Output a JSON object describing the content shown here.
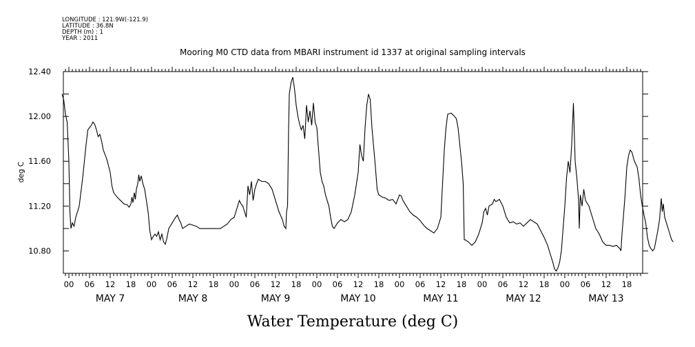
{
  "metadata": {
    "longitude": "LONGITUDE : 121.9W(-121.9)",
    "latitude": "LATITUDE : 36.8N",
    "depth": "DEPTH (m) : 1",
    "year": "YEAR : 2011"
  },
  "chart_data": {
    "type": "line",
    "title": "Mooring M0 CTD data from MBARI instrument id 1337 at original sampling intervals",
    "xlabel": "",
    "ylabel": "deg C",
    "caption": "Water Temperature (deg C)",
    "x_unit": "hours since 2011-05-07 00:00",
    "xlim": [
      -2,
      168
    ],
    "ylim": [
      10.6,
      12.4
    ],
    "y_ticks": [
      10.8,
      11.2,
      11.6,
      12.0,
      12.4
    ],
    "y_tick_labels": [
      "10.80",
      "11.20",
      "11.60",
      "12.00",
      "12.40"
    ],
    "hour_tick_labels": [
      "00",
      "06",
      "12",
      "18"
    ],
    "date_labels": [
      "MAY  7",
      "MAY  8",
      "MAY  9",
      "MAY 10",
      "MAY 11",
      "MAY 12",
      "MAY 13"
    ],
    "grid": false,
    "series": [
      {
        "values": [
          [
            -2,
            12.2
          ],
          [
            -1.5,
            12.15
          ],
          [
            -1,
            12.02
          ],
          [
            -0.5,
            11.95
          ],
          [
            0,
            11.6
          ],
          [
            0.3,
            11.15
          ],
          [
            0.6,
            11.0
          ],
          [
            1,
            11.05
          ],
          [
            1.5,
            11.02
          ],
          [
            2,
            11.1
          ],
          [
            3,
            11.2
          ],
          [
            4,
            11.45
          ],
          [
            5,
            11.75
          ],
          [
            5.5,
            11.88
          ],
          [
            6,
            11.9
          ],
          [
            6.5,
            11.92
          ],
          [
            7,
            11.95
          ],
          [
            7.5,
            11.93
          ],
          [
            8,
            11.88
          ],
          [
            8.5,
            11.82
          ],
          [
            9,
            11.84
          ],
          [
            9.5,
            11.78
          ],
          [
            10,
            11.7
          ],
          [
            11,
            11.62
          ],
          [
            12,
            11.5
          ],
          [
            12.5,
            11.38
          ],
          [
            13,
            11.32
          ],
          [
            14,
            11.28
          ],
          [
            15,
            11.25
          ],
          [
            16,
            11.22
          ],
          [
            17,
            11.21
          ],
          [
            17.5,
            11.19
          ],
          [
            18,
            11.22
          ],
          [
            18.3,
            11.28
          ],
          [
            18.6,
            11.23
          ],
          [
            19,
            11.32
          ],
          [
            19.3,
            11.26
          ],
          [
            19.6,
            11.35
          ],
          [
            20,
            11.4
          ],
          [
            20.3,
            11.48
          ],
          [
            20.6,
            11.42
          ],
          [
            21,
            11.47
          ],
          [
            21.5,
            11.4
          ],
          [
            22,
            11.35
          ],
          [
            23,
            11.15
          ],
          [
            23.5,
            10.98
          ],
          [
            24,
            10.9
          ],
          [
            24.5,
            10.93
          ],
          [
            25,
            10.95
          ],
          [
            25.5,
            10.93
          ],
          [
            26,
            10.97
          ],
          [
            26.5,
            10.9
          ],
          [
            27,
            10.95
          ],
          [
            27.5,
            10.88
          ],
          [
            28,
            10.86
          ],
          [
            28.5,
            10.92
          ],
          [
            29,
            11.0
          ],
          [
            30,
            11.05
          ],
          [
            31,
            11.1
          ],
          [
            31.5,
            11.12
          ],
          [
            32,
            11.08
          ],
          [
            32.5,
            11.05
          ],
          [
            33,
            11.0
          ],
          [
            34,
            11.02
          ],
          [
            35,
            11.04
          ],
          [
            36,
            11.03
          ],
          [
            37,
            11.02
          ],
          [
            38,
            11.0
          ],
          [
            40,
            11.0
          ],
          [
            42,
            11.0
          ],
          [
            44,
            11.0
          ],
          [
            45,
            11.02
          ],
          [
            46,
            11.04
          ],
          [
            47,
            11.08
          ],
          [
            48,
            11.1
          ],
          [
            48.5,
            11.15
          ],
          [
            49,
            11.2
          ],
          [
            49.5,
            11.25
          ],
          [
            50,
            11.22
          ],
          [
            50.5,
            11.2
          ],
          [
            51,
            11.15
          ],
          [
            51.5,
            11.1
          ],
          [
            52,
            11.38
          ],
          [
            52.5,
            11.3
          ],
          [
            53,
            11.42
          ],
          [
            53.5,
            11.25
          ],
          [
            54,
            11.35
          ],
          [
            54.5,
            11.4
          ],
          [
            55,
            11.44
          ],
          [
            56,
            11.42
          ],
          [
            57,
            11.42
          ],
          [
            58,
            11.4
          ],
          [
            59,
            11.35
          ],
          [
            60,
            11.25
          ],
          [
            61,
            11.15
          ],
          [
            62,
            11.08
          ],
          [
            62.5,
            11.02
          ],
          [
            63,
            11.0
          ],
          [
            63.2,
            11.15
          ],
          [
            63.5,
            11.2
          ],
          [
            63.8,
            11.9
          ],
          [
            64,
            12.2
          ],
          [
            64.5,
            12.3
          ],
          [
            65,
            12.35
          ],
          [
            65.5,
            12.25
          ],
          [
            66,
            12.1
          ],
          [
            66.5,
            12.0
          ],
          [
            67,
            11.93
          ],
          [
            67.5,
            11.88
          ],
          [
            68,
            11.92
          ],
          [
            68.5,
            11.8
          ],
          [
            69,
            12.1
          ],
          [
            69.5,
            11.95
          ],
          [
            70,
            12.05
          ],
          [
            70.5,
            11.92
          ],
          [
            71,
            12.12
          ],
          [
            71.5,
            11.95
          ],
          [
            72,
            11.9
          ],
          [
            72.5,
            11.7
          ],
          [
            73,
            11.5
          ],
          [
            73.5,
            11.42
          ],
          [
            74,
            11.38
          ],
          [
            74.5,
            11.3
          ],
          [
            75,
            11.25
          ],
          [
            75.5,
            11.2
          ],
          [
            76,
            11.1
          ],
          [
            76.5,
            11.02
          ],
          [
            77,
            11.0
          ],
          [
            78,
            11.05
          ],
          [
            79,
            11.08
          ],
          [
            80,
            11.06
          ],
          [
            81,
            11.08
          ],
          [
            82,
            11.15
          ],
          [
            83,
            11.3
          ],
          [
            84,
            11.5
          ],
          [
            84.5,
            11.75
          ],
          [
            85,
            11.65
          ],
          [
            85.5,
            11.6
          ],
          [
            86,
            11.9
          ],
          [
            86.5,
            12.1
          ],
          [
            87,
            12.2
          ],
          [
            87.5,
            12.15
          ],
          [
            88,
            11.9
          ],
          [
            89,
            11.55
          ],
          [
            89.5,
            11.35
          ],
          [
            90,
            11.3
          ],
          [
            91,
            11.28
          ],
          [
            92,
            11.27
          ],
          [
            93,
            11.25
          ],
          [
            94,
            11.26
          ],
          [
            95,
            11.22
          ],
          [
            96,
            11.3
          ],
          [
            96.5,
            11.29
          ],
          [
            97,
            11.25
          ],
          [
            98,
            11.2
          ],
          [
            99,
            11.15
          ],
          [
            100,
            11.12
          ],
          [
            101,
            11.1
          ],
          [
            102,
            11.07
          ],
          [
            103,
            11.03
          ],
          [
            104,
            11.0
          ],
          [
            105,
            10.98
          ],
          [
            106,
            10.96
          ],
          [
            107,
            11.0
          ],
          [
            108,
            11.1
          ],
          [
            108.5,
            11.4
          ],
          [
            109,
            11.7
          ],
          [
            109.5,
            11.9
          ],
          [
            110,
            12.02
          ],
          [
            111,
            12.03
          ],
          [
            112,
            12.0
          ],
          [
            112.5,
            11.98
          ],
          [
            113,
            11.9
          ],
          [
            114,
            11.6
          ],
          [
            114.5,
            11.4
          ],
          [
            114.8,
            10.9
          ],
          [
            115,
            10.9
          ],
          [
            116,
            10.88
          ],
          [
            117,
            10.85
          ],
          [
            118,
            10.88
          ],
          [
            119,
            10.95
          ],
          [
            120,
            11.05
          ],
          [
            120.5,
            11.15
          ],
          [
            121,
            11.18
          ],
          [
            121.5,
            11.12
          ],
          [
            122,
            11.2
          ],
          [
            123,
            11.22
          ],
          [
            123.5,
            11.26
          ],
          [
            124,
            11.24
          ],
          [
            125,
            11.26
          ],
          [
            126,
            11.2
          ],
          [
            127,
            11.1
          ],
          [
            128,
            11.05
          ],
          [
            129,
            11.06
          ],
          [
            130,
            11.04
          ],
          [
            131,
            11.05
          ],
          [
            132,
            11.02
          ],
          [
            133,
            11.05
          ],
          [
            134,
            11.08
          ],
          [
            135,
            11.06
          ],
          [
            136,
            11.04
          ],
          [
            137,
            10.98
          ],
          [
            138,
            10.92
          ],
          [
            139,
            10.85
          ],
          [
            140,
            10.75
          ],
          [
            140.5,
            10.7
          ],
          [
            141,
            10.64
          ],
          [
            141.5,
            10.62
          ],
          [
            142,
            10.65
          ],
          [
            142.5,
            10.7
          ],
          [
            143,
            10.8
          ],
          [
            144,
            11.2
          ],
          [
            144.5,
            11.45
          ],
          [
            145,
            11.6
          ],
          [
            145.5,
            11.5
          ],
          [
            146,
            11.75
          ],
          [
            146.5,
            12.12
          ],
          [
            147,
            11.6
          ],
          [
            147.5,
            11.45
          ],
          [
            148,
            11.25
          ],
          [
            148.2,
            11.0
          ],
          [
            148.5,
            11.3
          ],
          [
            149,
            11.2
          ],
          [
            149.5,
            11.35
          ],
          [
            150,
            11.25
          ],
          [
            151,
            11.2
          ],
          [
            152,
            11.1
          ],
          [
            153,
            11.0
          ],
          [
            154,
            10.95
          ],
          [
            155,
            10.88
          ],
          [
            156,
            10.85
          ],
          [
            157,
            10.85
          ],
          [
            158,
            10.84
          ],
          [
            159,
            10.85
          ],
          [
            160,
            10.82
          ],
          [
            160.3,
            10.8
          ],
          [
            160.6,
            10.95
          ],
          [
            161,
            11.1
          ],
          [
            161.5,
            11.3
          ],
          [
            162,
            11.55
          ],
          [
            162.5,
            11.65
          ],
          [
            163,
            11.7
          ],
          [
            163.5,
            11.68
          ],
          [
            164,
            11.62
          ],
          [
            164.5,
            11.58
          ],
          [
            165,
            11.55
          ],
          [
            165.5,
            11.45
          ],
          [
            166,
            11.3
          ],
          [
            166.5,
            11.2
          ],
          [
            167,
            11.12
          ],
          [
            167.5,
            11.05
          ],
          [
            168,
            10.92
          ],
          [
            168.5,
            10.85
          ],
          [
            169,
            10.82
          ],
          [
            169.5,
            10.8
          ],
          [
            170,
            10.82
          ],
          [
            170.5,
            10.9
          ],
          [
            171,
            10.98
          ],
          [
            171.5,
            11.08
          ],
          [
            172,
            11.27
          ],
          [
            172.3,
            11.15
          ],
          [
            172.6,
            11.22
          ],
          [
            173,
            11.1
          ],
          [
            173.5,
            11.05
          ],
          [
            174,
            11.0
          ],
          [
            174.5,
            10.95
          ],
          [
            175,
            10.9
          ],
          [
            175.5,
            10.88
          ]
        ]
      }
    ]
  }
}
